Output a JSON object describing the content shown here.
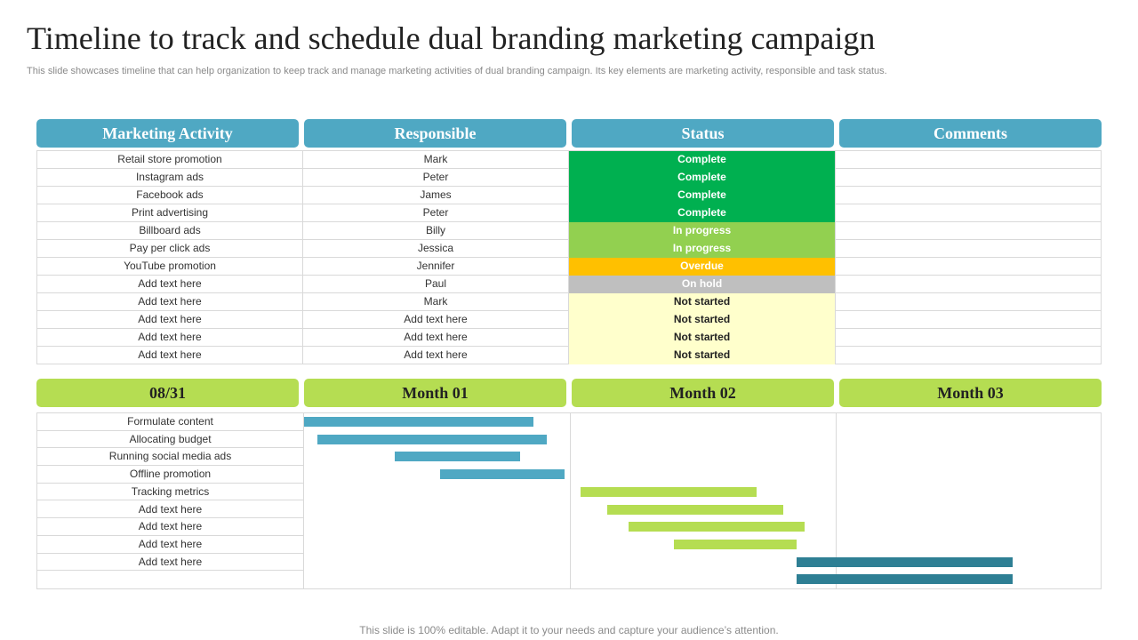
{
  "title": "Timeline to track and schedule dual branding marketing campaign",
  "subtitle": "This slide showcases timeline that can help organization to keep track and manage marketing activities of dual branding campaign. Its key elements are marketing activity, responsible and task status.",
  "table": {
    "headers": [
      "Marketing Activity",
      "Responsible",
      "Status",
      "Comments"
    ],
    "rows": [
      {
        "activity": "Retail store promotion",
        "responsible": "Mark",
        "status": "Complete",
        "comments": ""
      },
      {
        "activity": "Instagram ads",
        "responsible": "Peter",
        "status": "Complete",
        "comments": ""
      },
      {
        "activity": "Facebook ads",
        "responsible": "James",
        "status": "Complete",
        "comments": ""
      },
      {
        "activity": "Print advertising",
        "responsible": "Peter",
        "status": "Complete",
        "comments": ""
      },
      {
        "activity": "Billboard ads",
        "responsible": "Billy",
        "status": "In progress",
        "comments": ""
      },
      {
        "activity": "Pay per click ads",
        "responsible": "Jessica",
        "status": "In progress",
        "comments": ""
      },
      {
        "activity": "YouTube promotion",
        "responsible": "Jennifer",
        "status": "Overdue",
        "comments": ""
      },
      {
        "activity": "Add text here",
        "responsible": "Paul",
        "status": "On hold",
        "comments": ""
      },
      {
        "activity": "Add text here",
        "responsible": "Mark",
        "status": "Not started",
        "comments": ""
      },
      {
        "activity": "Add text here",
        "responsible": "Add text here",
        "status": "Not started",
        "comments": ""
      },
      {
        "activity": "Add text here",
        "responsible": "Add text here",
        "status": "Not started",
        "comments": ""
      },
      {
        "activity": "Add text here",
        "responsible": "Add text here",
        "status": "Not started",
        "comments": ""
      }
    ]
  },
  "status_colors": {
    "Complete": {
      "bg": "#00b050",
      "fg": "#ffffff"
    },
    "In progress": {
      "bg": "#92d050",
      "fg": "#ffffff"
    },
    "Overdue": {
      "bg": "#ffc000",
      "fg": "#ffffff"
    },
    "On hold": {
      "bg": "#bfbfbf",
      "fg": "#ffffff"
    },
    "Not started": {
      "bg": "#ffffcc",
      "fg": "#222222"
    }
  },
  "timeline": {
    "headers": [
      "08/31",
      "Month 01",
      "Month 02",
      "Month 03"
    ],
    "tasks": [
      "Formulate content",
      "Allocating budget",
      "Running social media ads",
      "Offline promotion",
      "Tracking metrics",
      "Add text here",
      "Add text here",
      "Add text here",
      "Add text here",
      ""
    ],
    "bars": [
      {
        "row": 0,
        "start": 0.0,
        "end": 0.86,
        "color": "#4fa8c3"
      },
      {
        "row": 1,
        "start": 0.05,
        "end": 0.91,
        "color": "#4fa8c3"
      },
      {
        "row": 2,
        "start": 0.34,
        "end": 0.81,
        "color": "#4fa8c3"
      },
      {
        "row": 3,
        "start": 0.51,
        "end": 0.98,
        "color": "#4fa8c3"
      },
      {
        "row": 4,
        "start": 1.04,
        "end": 1.7,
        "color": "#b5dd52"
      },
      {
        "row": 5,
        "start": 1.14,
        "end": 1.8,
        "color": "#b5dd52"
      },
      {
        "row": 6,
        "start": 1.22,
        "end": 1.88,
        "color": "#b5dd52"
      },
      {
        "row": 7,
        "start": 1.39,
        "end": 1.85,
        "color": "#b5dd52"
      },
      {
        "row": 8,
        "start": 1.85,
        "end": 2.66,
        "color": "#2e7f94"
      },
      {
        "row": 9,
        "start": 1.85,
        "end": 2.66,
        "color": "#2e7f94"
      }
    ]
  },
  "colors": {
    "header_blue": "#4fa8c3",
    "header_green": "#b5dd52"
  },
  "footer": "This slide is 100% editable. Adapt it to your needs and capture your audience’s attention."
}
